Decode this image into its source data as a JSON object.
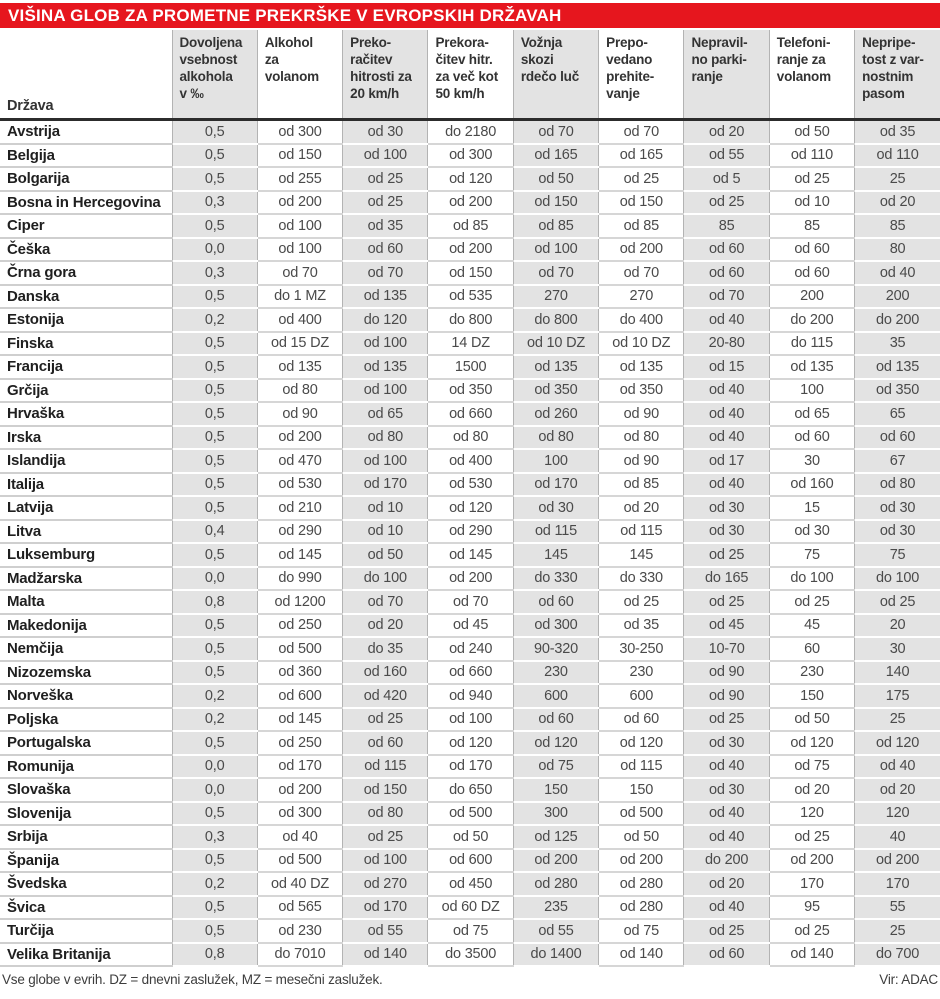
{
  "title": "VIŠINA GLOB ZA PROMETNE PREKRŠKE V EVROPSKIH DRŽAVAH",
  "table": {
    "country_header": "Država",
    "columns": [
      {
        "id": "alcohol-limit",
        "label": "Dovoljena\nvsebnost\nalkohola\nv ‰"
      },
      {
        "id": "alcohol-fine",
        "label": "Alkohol\nza\nvolanom"
      },
      {
        "id": "speeding-20",
        "label": "Preko-\nračitev\nhitrosti za\n20 km/h"
      },
      {
        "id": "speeding-50",
        "label": "Prekora-\nčitev hitr.\nza več kot\n50 km/h"
      },
      {
        "id": "red-light",
        "label": "Vožnja\nskozi\nrdečo luč"
      },
      {
        "id": "overtaking",
        "label": "Prepo-\nvedano\nprehite-\nvanje"
      },
      {
        "id": "parking",
        "label": "Nepravil-\nno parki-\nranje"
      },
      {
        "id": "phone",
        "label": "Telefoni-\nranje za\nvolanom"
      },
      {
        "id": "seatbelt",
        "label": "Nepripe-\ntost z var-\nnostnim\npasom"
      }
    ],
    "rows": [
      {
        "country": "Avstrija",
        "values": [
          "0,5",
          "od 300",
          "od 30",
          "do 2180",
          "od 70",
          "od 70",
          "od 20",
          "od 50",
          "od 35"
        ]
      },
      {
        "country": "Belgija",
        "values": [
          "0,5",
          "od 150",
          "od 100",
          "od 300",
          "od 165",
          "od 165",
          "od 55",
          "od 110",
          "od 110"
        ]
      },
      {
        "country": "Bolgarija",
        "values": [
          "0,5",
          "od 255",
          "od 25",
          "od 120",
          "od 50",
          "od 25",
          "od 5",
          "od 25",
          "25"
        ]
      },
      {
        "country": "Bosna in Hercegovina",
        "values": [
          "0,3",
          "od 200",
          "od 25",
          "od 200",
          "od 150",
          "od 150",
          "od 25",
          "od 10",
          "od 20"
        ]
      },
      {
        "country": "Ciper",
        "values": [
          "0,5",
          "od 100",
          "od 35",
          "od 85",
          "od 85",
          "od 85",
          "85",
          "85",
          "85"
        ]
      },
      {
        "country": "Češka",
        "values": [
          "0,0",
          "od 100",
          "od 60",
          "od 200",
          "od 100",
          "od 200",
          "od 60",
          "od 60",
          "80"
        ]
      },
      {
        "country": "Črna gora",
        "values": [
          "0,3",
          "od 70",
          "od 70",
          "od 150",
          "od 70",
          "od 70",
          "od 60",
          "od 60",
          "od 40"
        ]
      },
      {
        "country": "Danska",
        "values": [
          "0,5",
          "do 1 MZ",
          "od 135",
          "od 535",
          "270",
          "270",
          "od 70",
          "200",
          "200"
        ]
      },
      {
        "country": "Estonija",
        "values": [
          "0,2",
          "od 400",
          "do 120",
          "do 800",
          "do 800",
          "do 400",
          "od 40",
          "do 200",
          "do 200"
        ]
      },
      {
        "country": "Finska",
        "values": [
          "0,5",
          "od 15 DZ",
          "od 100",
          "14 DZ",
          "od 10 DZ",
          "od 10 DZ",
          "20-80",
          "do 115",
          "35"
        ]
      },
      {
        "country": "Francija",
        "values": [
          "0,5",
          "od 135",
          "od 135",
          "1500",
          "od 135",
          "od 135",
          "od 15",
          "od 135",
          "od 135"
        ]
      },
      {
        "country": "Grčija",
        "values": [
          "0,5",
          "od 80",
          "od 100",
          "od 350",
          "od 350",
          "od 350",
          "od 40",
          "100",
          "od 350"
        ]
      },
      {
        "country": "Hrvaška",
        "values": [
          "0,5",
          "od 90",
          "od 65",
          "od 660",
          "od 260",
          "od 90",
          "od 40",
          "od 65",
          "65"
        ]
      },
      {
        "country": "Irska",
        "values": [
          "0,5",
          "od 200",
          "od 80",
          "od 80",
          "od 80",
          "od 80",
          "od 40",
          "od 60",
          "od 60"
        ]
      },
      {
        "country": "Islandija",
        "values": [
          "0,5",
          "od 470",
          "od 100",
          "od 400",
          "100",
          "od 90",
          "od 17",
          "30",
          "67"
        ]
      },
      {
        "country": "Italija",
        "values": [
          "0,5",
          "od 530",
          "od 170",
          "od 530",
          "od 170",
          "od 85",
          "od 40",
          "od 160",
          "od 80"
        ]
      },
      {
        "country": "Latvija",
        "values": [
          "0,5",
          "od 210",
          "od 10",
          "od 120",
          "od 30",
          "od 20",
          "od 30",
          "15",
          "od 30"
        ]
      },
      {
        "country": "Litva",
        "values": [
          "0,4",
          "od 290",
          "od 10",
          "od 290",
          "od 115",
          "od 115",
          "od 30",
          "od 30",
          "od 30"
        ]
      },
      {
        "country": "Luksemburg",
        "values": [
          "0,5",
          "od 145",
          "od 50",
          "od 145",
          "145",
          "145",
          "od 25",
          "75",
          "75"
        ]
      },
      {
        "country": "Madžarska",
        "values": [
          "0,0",
          "do 990",
          "do 100",
          "od 200",
          "do 330",
          "do 330",
          "do 165",
          "do 100",
          "do 100"
        ]
      },
      {
        "country": "Malta",
        "values": [
          "0,8",
          "od 1200",
          "od 70",
          "od 70",
          "od 60",
          "od 25",
          "od 25",
          "od 25",
          "od 25"
        ]
      },
      {
        "country": "Makedonija",
        "values": [
          "0,5",
          "od 250",
          "od 20",
          "od 45",
          "od 300",
          "od 35",
          "od 45",
          "45",
          "20"
        ]
      },
      {
        "country": "Nemčija",
        "values": [
          "0,5",
          "od 500",
          "do 35",
          "od 240",
          "90-320",
          "30-250",
          "10-70",
          "60",
          "30"
        ]
      },
      {
        "country": "Nizozemska",
        "values": [
          "0,5",
          "od 360",
          "od 160",
          "od 660",
          "230",
          "230",
          "od 90",
          "230",
          "140"
        ]
      },
      {
        "country": "Norveška",
        "values": [
          "0,2",
          "od 600",
          "od 420",
          "od 940",
          "600",
          "600",
          "od 90",
          "150",
          "175"
        ]
      },
      {
        "country": "Poljska",
        "values": [
          "0,2",
          "od 145",
          "od 25",
          "od 100",
          "od 60",
          "od 60",
          "od 25",
          "od 50",
          "25"
        ]
      },
      {
        "country": "Portugalska",
        "values": [
          "0,5",
          "od 250",
          "od 60",
          "od 120",
          "od 120",
          "od 120",
          "od 30",
          "od 120",
          "od 120"
        ]
      },
      {
        "country": "Romunija",
        "values": [
          "0,0",
          "od 170",
          "od 115",
          "od 170",
          "od 75",
          "od 115",
          "od 40",
          "od 75",
          "od 40"
        ]
      },
      {
        "country": "Slovaška",
        "values": [
          "0,0",
          "od 200",
          "od 150",
          "do 650",
          "150",
          "150",
          "od 30",
          "od 20",
          "od 20"
        ]
      },
      {
        "country": "Slovenija",
        "values": [
          "0,5",
          "od 300",
          "od 80",
          "od 500",
          "300",
          "od 500",
          "od 40",
          "120",
          "120"
        ]
      },
      {
        "country": "Srbija",
        "values": [
          "0,3",
          "od 40",
          "od 25",
          "od 50",
          "od 125",
          "od 50",
          "od 40",
          "od 25",
          "40"
        ]
      },
      {
        "country": "Španija",
        "values": [
          "0,5",
          "od 500",
          "od 100",
          "od 600",
          "od 200",
          "od 200",
          "do 200",
          "od 200",
          "od 200"
        ]
      },
      {
        "country": "Švedska",
        "values": [
          "0,2",
          "od 40 DZ",
          "od 270",
          "od 450",
          "od 280",
          "od 280",
          "od 20",
          "170",
          "170"
        ]
      },
      {
        "country": "Švica",
        "values": [
          "0,5",
          "od 565",
          "od 170",
          "od 60 DZ",
          "235",
          "od 280",
          "od 40",
          "95",
          "55"
        ]
      },
      {
        "country": "Turčija",
        "values": [
          "0,5",
          "od 230",
          "od 55",
          "od 75",
          "od 55",
          "od 75",
          "od 25",
          "od 25",
          "25"
        ]
      },
      {
        "country": "Velika Britanija",
        "values": [
          "0,8",
          "do 7010",
          "od 140",
          "do 3500",
          "do 1400",
          "od 140",
          "od 60",
          "od 140",
          "do 700"
        ]
      }
    ]
  },
  "footer": {
    "note": "Vse globe v evrih. DZ = dnevni zaslužek, MZ = mesečni zaslužek.",
    "source": "Vir: ADAC"
  },
  "colors": {
    "banner_red": "#e6161e",
    "shaded_column": "#e3e3e3",
    "header_rule": "#2c2c2c"
  }
}
